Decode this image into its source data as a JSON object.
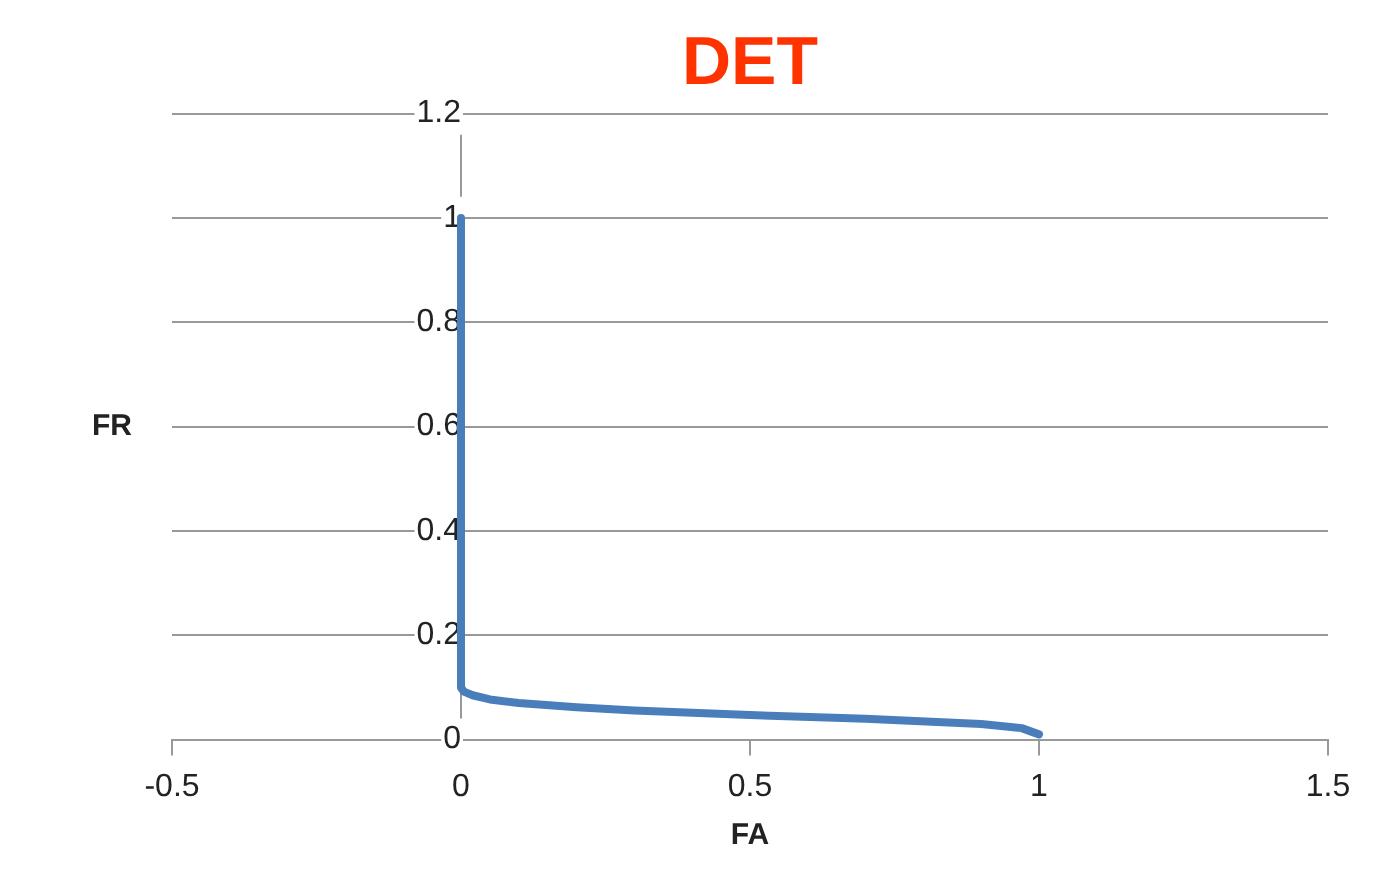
{
  "chart_data": {
    "type": "line",
    "title": "DET",
    "xlabel": "FA",
    "ylabel": "FR",
    "xlim": [
      -0.5,
      1.5
    ],
    "xticks": [
      -0.5,
      0,
      0.5,
      1,
      1.5
    ],
    "ylim": [
      0,
      1.2
    ],
    "yticks": [
      0,
      0.2,
      0.4,
      0.6,
      0.8,
      1,
      1.2
    ],
    "grid": "y",
    "legend": false,
    "marker": "none",
    "line_style": "solid",
    "series": [
      {
        "color": "#4a7ebb",
        "x": [
          0,
          0,
          0.005,
          0.02,
          0.05,
          0.1,
          0.2,
          0.3,
          0.5,
          0.7,
          0.9,
          0.97,
          1
        ],
        "values": [
          1,
          0.1,
          0.092,
          0.085,
          0.077,
          0.07,
          0.062,
          0.056,
          0.047,
          0.04,
          0.03,
          0.022,
          0.01
        ]
      }
    ]
  }
}
